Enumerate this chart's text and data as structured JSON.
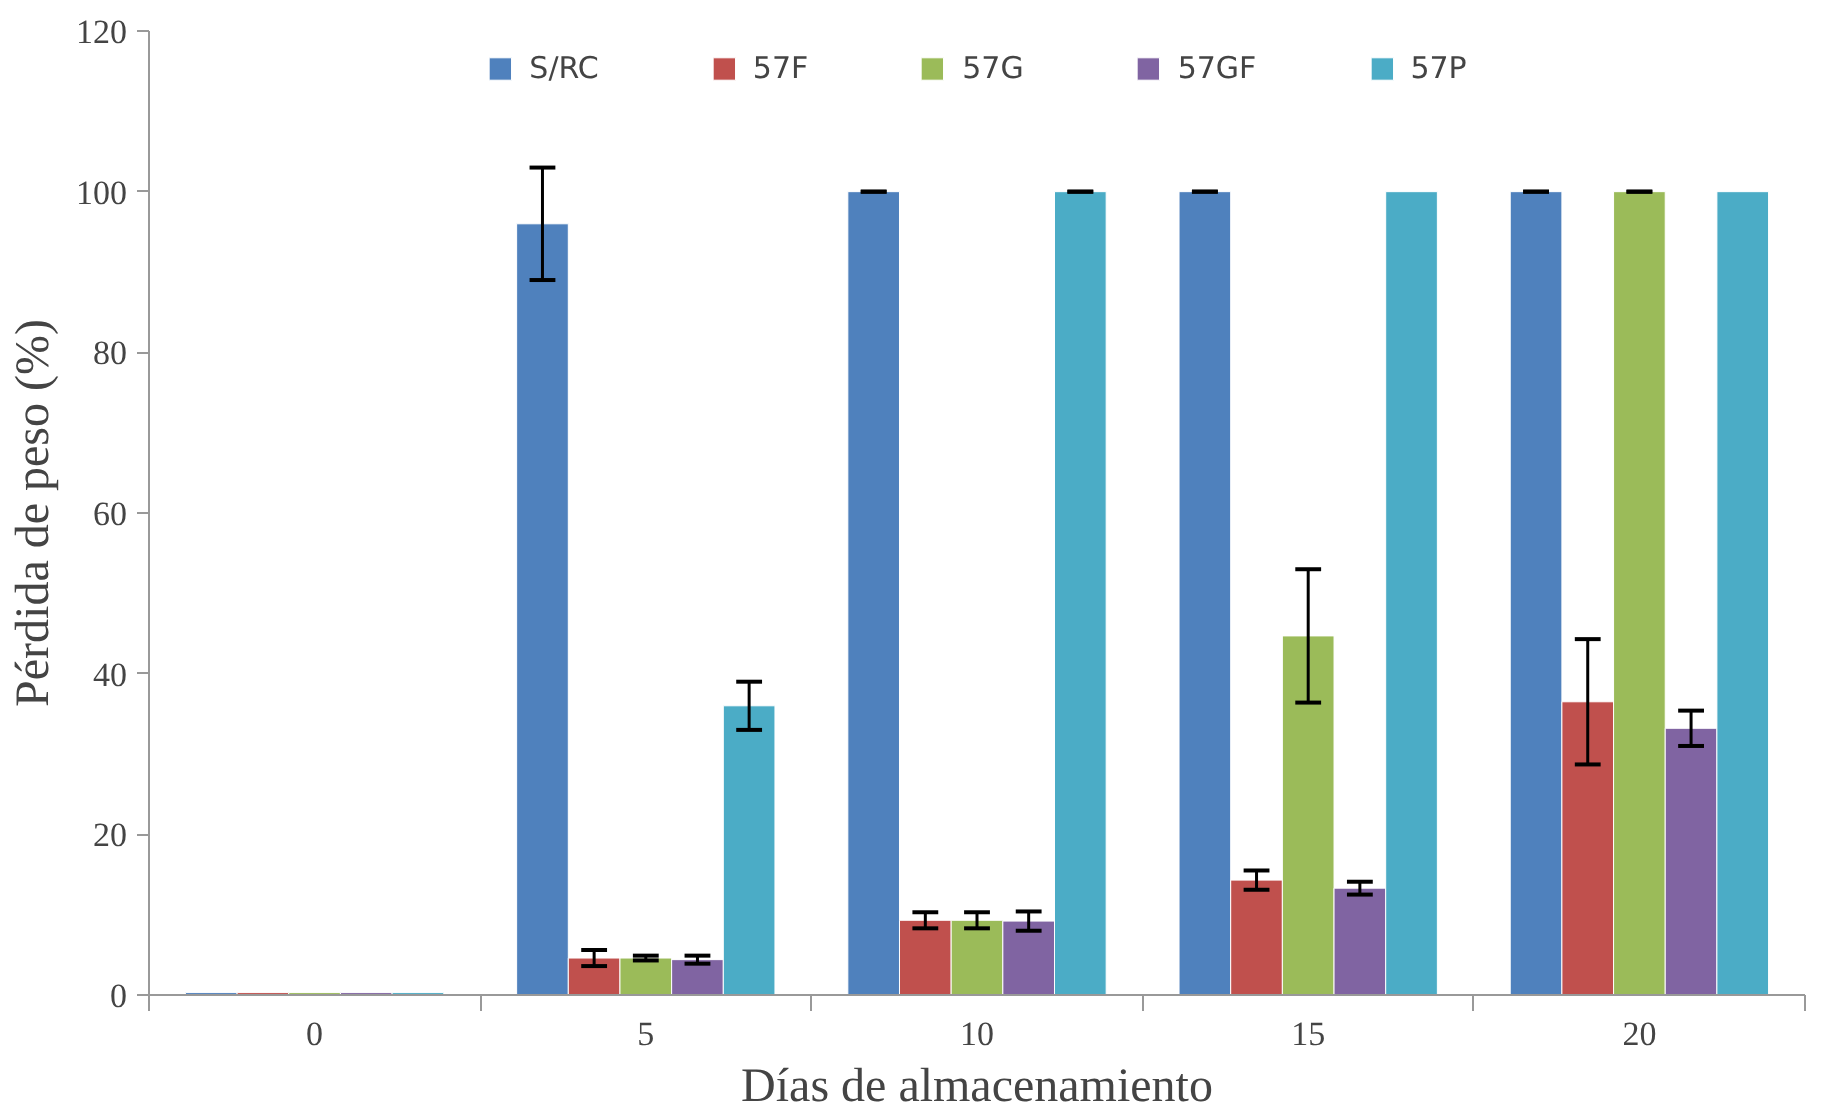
{
  "chart_data": {
    "type": "bar",
    "xlabel": "Días de almacenamiento",
    "ylabel": "Pérdida de peso (%)",
    "categories": [
      "0",
      "5",
      "10",
      "15",
      "20"
    ],
    "series": [
      {
        "name": "S/RC",
        "color": "#4f81bd",
        "values": [
          0.3,
          96,
          100,
          100,
          100
        ],
        "errors": [
          null,
          7,
          0,
          0,
          0
        ]
      },
      {
        "name": "57F",
        "color": "#c0504d",
        "values": [
          0.3,
          4.6,
          9.3,
          14.3,
          36.5
        ],
        "errors": [
          null,
          1,
          1,
          1.2,
          7.8
        ]
      },
      {
        "name": "57G",
        "color": "#9bbb59",
        "values": [
          0.3,
          4.6,
          9.3,
          44.7,
          100
        ],
        "errors": [
          null,
          0.3,
          1,
          8.3,
          0
        ]
      },
      {
        "name": "57GF",
        "color": "#8064a2",
        "values": [
          0.3,
          4.4,
          9.2,
          13.3,
          33.2
        ],
        "errors": [
          null,
          0.5,
          1.2,
          0.8,
          2.2
        ]
      },
      {
        "name": "57P",
        "color": "#4bacc6",
        "values": [
          0.3,
          36,
          100,
          100,
          100
        ],
        "errors": [
          null,
          3,
          0,
          null,
          null
        ]
      }
    ],
    "ylim": [
      0,
      120
    ],
    "yticks": [
      0,
      20,
      40,
      60,
      80,
      100,
      120
    ],
    "grid": false,
    "legend": "top"
  }
}
